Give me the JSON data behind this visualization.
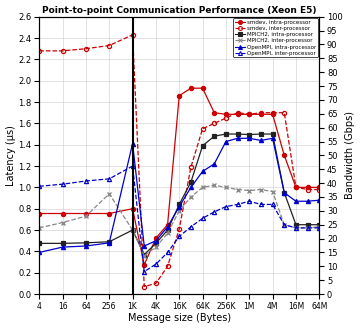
{
  "title": "Point-to-point Communication Performance (Xeon E5)",
  "xlabel": "Message size (Bytes)",
  "ylabel_left": "Latency (µs)",
  "ylabel_right": "Bandwidth (Gbps)",
  "x_ticks_labels": [
    "4",
    "16",
    "64",
    "256",
    "1K",
    "4K",
    "16K",
    "64K",
    "256K",
    "1M",
    "4M",
    "16M",
    "64M"
  ],
  "x_ticks_vals": [
    4,
    16,
    64,
    256,
    1024,
    4096,
    16384,
    65536,
    262144,
    1048576,
    4194304,
    16777216,
    67108864
  ],
  "vline_x": 1024,
  "ylim_left": [
    0,
    2.6
  ],
  "ylim_right": [
    0,
    100
  ],
  "yticks_left": [
    0,
    0.2,
    0.4,
    0.6,
    0.8,
    1.0,
    1.2,
    1.4,
    1.6,
    1.8,
    2.0,
    2.2,
    2.4,
    2.6
  ],
  "yticks_right": [
    0,
    5,
    10,
    15,
    20,
    25,
    30,
    35,
    40,
    45,
    50,
    55,
    60,
    65,
    70,
    75,
    80,
    85,
    90,
    95,
    100
  ],
  "series": {
    "smdev_intra": {
      "label": "smdev, intra-processor",
      "color": "#cc0000",
      "marker": "o",
      "linestyle": "-",
      "fillstyle": "full",
      "x": [
        4,
        16,
        64,
        256,
        1024,
        2048,
        4096,
        8192,
        16384,
        32768,
        65536,
        131072,
        262144,
        524288,
        1048576,
        2097152,
        4194304,
        8388608,
        16777216,
        33554432,
        67108864
      ],
      "y": [
        0.755,
        0.755,
        0.755,
        0.755,
        0.8,
        0.275,
        0.525,
        0.65,
        1.86,
        1.93,
        1.93,
        1.7,
        1.685,
        1.685,
        1.685,
        1.685,
        1.685,
        1.3,
        1.0,
        1.0,
        1.0
      ]
    },
    "smdev_inter": {
      "label": "smdev, inter-processor",
      "color": "#cc0000",
      "marker": "o",
      "linestyle": "--",
      "fillstyle": "none",
      "x": [
        4,
        16,
        64,
        256,
        1024,
        2048,
        4096,
        8192,
        16384,
        32768,
        65536,
        131072,
        262144,
        524288,
        1048576,
        2097152,
        4194304,
        8388608,
        16777216,
        33554432,
        67108864
      ],
      "y": [
        2.28,
        2.28,
        2.3,
        2.33,
        2.43,
        0.07,
        0.1,
        0.26,
        0.61,
        1.19,
        1.55,
        1.6,
        1.65,
        1.7,
        1.685,
        1.7,
        1.7,
        1.7,
        1.0,
        0.98,
        0.98
      ]
    },
    "mpich2_intra": {
      "label": "MPICH2, intra-processor",
      "color": "#222222",
      "marker": "s",
      "linestyle": "-",
      "fillstyle": "full",
      "x": [
        4,
        16,
        64,
        256,
        1024,
        2048,
        4096,
        8192,
        16384,
        32768,
        65536,
        131072,
        262144,
        524288,
        1048576,
        2097152,
        4194304,
        8388608,
        16777216,
        33554432,
        67108864
      ],
      "y": [
        0.475,
        0.475,
        0.48,
        0.49,
        0.6,
        0.37,
        0.475,
        0.6,
        0.84,
        1.05,
        1.39,
        1.48,
        1.5,
        1.5,
        1.495,
        1.5,
        1.5,
        0.95,
        0.65,
        0.65,
        0.65
      ]
    },
    "mpich2_inter": {
      "label": "MPICH2, inter-processor",
      "color": "#888888",
      "marker": "x",
      "linestyle": "--",
      "fillstyle": "full",
      "x": [
        4,
        16,
        64,
        256,
        1024,
        2048,
        4096,
        8192,
        16384,
        32768,
        65536,
        131072,
        262144,
        524288,
        1048576,
        2097152,
        4194304,
        8388608,
        16777216,
        33554432,
        67108864
      ],
      "y": [
        0.62,
        0.67,
        0.73,
        0.94,
        0.6,
        0.36,
        0.44,
        0.57,
        0.78,
        0.91,
        1.0,
        1.02,
        1.0,
        0.98,
        0.97,
        0.98,
        0.96,
        0.65,
        0.62,
        0.62,
        0.63
      ]
    },
    "openmpi_intra": {
      "label": "OpenMPI, intra-processor",
      "color": "#0000cc",
      "marker": "^",
      "linestyle": "-",
      "fillstyle": "full",
      "x": [
        4,
        16,
        64,
        256,
        1024,
        2048,
        4096,
        8192,
        16384,
        32768,
        65536,
        131072,
        262144,
        524288,
        1048576,
        2097152,
        4194304,
        8388608,
        16777216,
        33554432,
        67108864
      ],
      "y": [
        0.39,
        0.44,
        0.45,
        0.48,
        1.41,
        0.45,
        0.5,
        0.63,
        0.82,
        1.0,
        1.15,
        1.22,
        1.43,
        1.46,
        1.46,
        1.44,
        1.46,
        0.95,
        0.87,
        0.87,
        0.88
      ]
    },
    "openmpi_inter": {
      "label": "OpenMPI, inter-processor",
      "color": "#0000cc",
      "marker": "^",
      "linestyle": "--",
      "fillstyle": "none",
      "x": [
        4,
        16,
        64,
        256,
        1024,
        2048,
        4096,
        8192,
        16384,
        32768,
        65536,
        131072,
        262144,
        524288,
        1048576,
        2097152,
        4194304,
        8388608,
        16777216,
        33554432,
        67108864
      ],
      "y": [
        1.01,
        1.03,
        1.06,
        1.08,
        1.2,
        0.21,
        0.28,
        0.39,
        0.54,
        0.63,
        0.71,
        0.77,
        0.82,
        0.84,
        0.87,
        0.84,
        0.84,
        0.65,
        0.62,
        0.62,
        0.62
      ]
    }
  },
  "legend_entries": [
    {
      "label": "smdev, intra-processor",
      "color": "#cc0000",
      "marker": "o",
      "fillstyle": "full",
      "linestyle": "-"
    },
    {
      "label": "smdev, inter-processor",
      "color": "#cc0000",
      "marker": "o",
      "fillstyle": "none",
      "linestyle": "--"
    },
    {
      "label": "MPICH2, intra-processor",
      "color": "#222222",
      "marker": "s",
      "fillstyle": "full",
      "linestyle": "-"
    },
    {
      "label": "MPICH2, inter-processor",
      "color": "#888888",
      "marker": "x",
      "fillstyle": "full",
      "linestyle": "--"
    },
    {
      "label": "OpenMPI, intra-processor",
      "color": "#0000cc",
      "marker": "^",
      "fillstyle": "full",
      "linestyle": "-"
    },
    {
      "label": "OpenMPI, inter-processor",
      "color": "#0000cc",
      "marker": "^",
      "fillstyle": "none",
      "linestyle": "--"
    }
  ]
}
